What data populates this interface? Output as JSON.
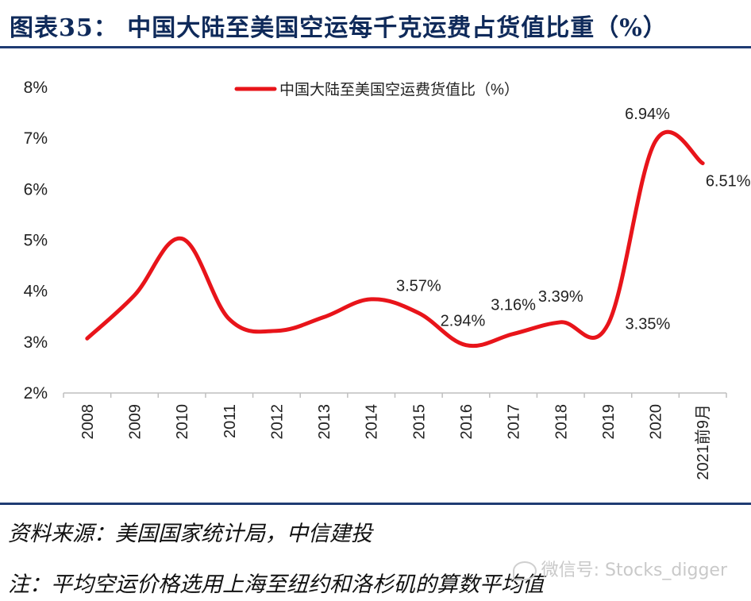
{
  "header": {
    "title": "图表35：   中国大陆至美国空运每千克运费占货值比重（%）"
  },
  "footer": {
    "source": "资料来源：美国国家统计局，中信建投",
    "note": "注：平均空运价格选用上海至纽约和洛杉矶的算数平均值",
    "watermark": "微信号: Stocks_digger"
  },
  "colors": {
    "accent": "#1f3b73",
    "series": "#e8141a"
  },
  "chart_data": {
    "type": "line",
    "categories": [
      "2008",
      "2009",
      "2010",
      "2011",
      "2012",
      "2013",
      "2014",
      "2015",
      "2016",
      "2017",
      "2018",
      "2019",
      "2020",
      "2021前9月"
    ],
    "series": [
      {
        "name": "中国大陆至美国空运费货值比（%）",
        "values": [
          3.07,
          3.92,
          5.03,
          3.45,
          3.22,
          3.49,
          3.84,
          3.57,
          2.94,
          3.16,
          3.39,
          3.35,
          6.94,
          6.51
        ]
      }
    ],
    "data_labels": [
      {
        "index": 7,
        "text": "3.57%"
      },
      {
        "index": 8,
        "text": "2.94%"
      },
      {
        "index": 9,
        "text": "3.16%"
      },
      {
        "index": 10,
        "text": "3.39%"
      },
      {
        "index": 11,
        "text": "3.35%"
      },
      {
        "index": 12,
        "text": "6.94%"
      },
      {
        "index": 13,
        "text": "6.51%"
      }
    ],
    "yticks": [
      "2%",
      "3%",
      "4%",
      "5%",
      "6%",
      "7%",
      "8%"
    ],
    "ylim": [
      2,
      8
    ],
    "grid": false,
    "legend_position": "top"
  }
}
